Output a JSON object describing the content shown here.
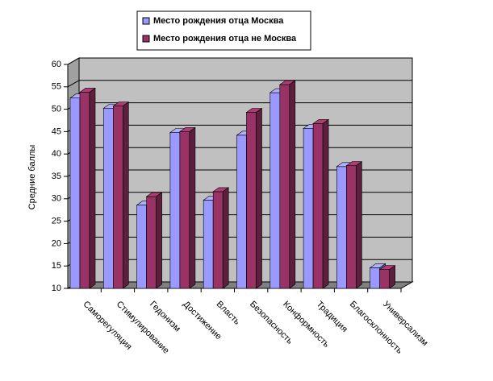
{
  "chart_data": {
    "type": "bar3d",
    "y_label": "Средние баллы",
    "categories": [
      "Саморегуляция",
      "Стимулирование",
      "Гедонизм",
      "Достижение",
      "Власть",
      "Безопасность",
      "Конформность",
      "Традиция",
      "Благосклонность",
      "Универсализм"
    ],
    "series": [
      {
        "name": "Место рождения отца Москва",
        "color": "#9999ff",
        "values": [
          52.5,
          50.2,
          28.6,
          44.8,
          29.7,
          44.2,
          53.7,
          45.7,
          37.2,
          14.6
        ]
      },
      {
        "name": "Место рождения отца не Москва",
        "color": "#993366",
        "values": [
          53.8,
          50.7,
          30.5,
          45.0,
          31.6,
          49.3,
          55.5,
          46.8,
          37.4,
          14.2
        ]
      }
    ],
    "ylim": [
      10,
      60
    ],
    "yticks": [
      10,
      15,
      20,
      25,
      30,
      35,
      40,
      45,
      50,
      55,
      60
    ],
    "grid": true
  }
}
